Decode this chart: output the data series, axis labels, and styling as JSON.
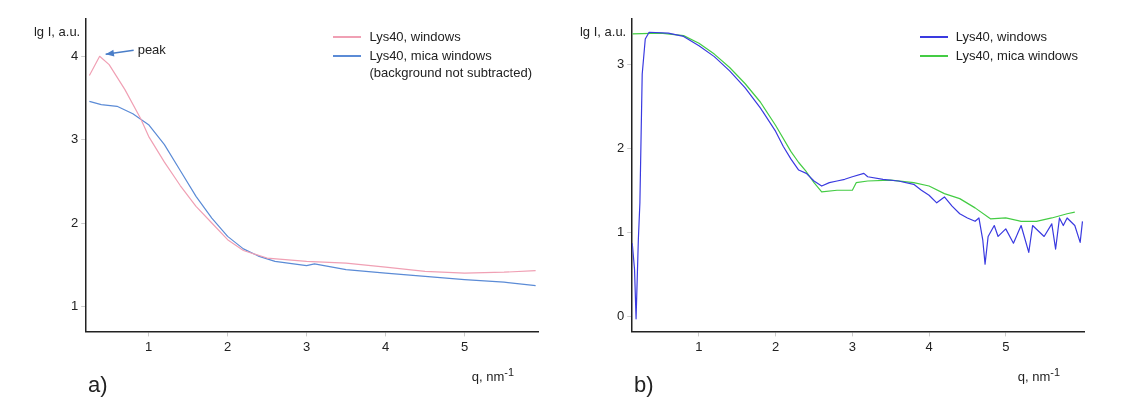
{
  "chart_data": [
    {
      "type": "line",
      "xlabel": "q, nm$^{-1}$",
      "ylabel": "lg I, a.u.",
      "xlim": [
        0.21,
        5.93
      ],
      "ylim": [
        0.7,
        4.45
      ],
      "xticks": [
        1,
        2,
        3,
        4,
        5
      ],
      "yticks": [
        1,
        2,
        3,
        4
      ],
      "legend": "top right",
      "annotations": [
        {
          "text": "peak",
          "x": 0.38,
          "y": 4.0
        },
        "a)"
      ],
      "series": [
        {
          "name": "Lys40, windows",
          "color": "#f0a0b4",
          "x": [
            0.25,
            0.38,
            0.5,
            0.7,
            0.9,
            1.0,
            1.2,
            1.4,
            1.6,
            1.8,
            2.0,
            2.2,
            2.5,
            3.0,
            3.5,
            4.0,
            4.5,
            5.0,
            5.5,
            5.9
          ],
          "values": [
            3.77,
            4.0,
            3.9,
            3.6,
            3.25,
            3.04,
            2.73,
            2.45,
            2.2,
            2.0,
            1.8,
            1.67,
            1.58,
            1.54,
            1.52,
            1.47,
            1.42,
            1.4,
            1.41,
            1.43
          ]
        },
        {
          "name": "Lys40, mica windows\n(background not subtracted)",
          "color": "#5b8bd6",
          "x": [
            0.25,
            0.4,
            0.6,
            0.8,
            1.0,
            1.2,
            1.4,
            1.6,
            1.8,
            2.0,
            2.2,
            2.4,
            2.6,
            3.0,
            3.1,
            3.5,
            4.0,
            4.5,
            5.0,
            5.5,
            5.9
          ],
          "values": [
            3.46,
            3.42,
            3.4,
            3.31,
            3.18,
            2.94,
            2.63,
            2.32,
            2.06,
            1.84,
            1.69,
            1.6,
            1.54,
            1.49,
            1.51,
            1.44,
            1.4,
            1.36,
            1.32,
            1.29,
            1.25
          ]
        }
      ]
    },
    {
      "type": "line",
      "xlabel": "q, nm$^{-1}$",
      "ylabel": "lg I, a.u.",
      "xlim": [
        0.13,
        6.02
      ],
      "ylim": [
        -0.18,
        3.54
      ],
      "xticks": [
        1,
        2,
        3,
        4,
        5
      ],
      "yticks": [
        0,
        1,
        2,
        3
      ],
      "legend": "top right",
      "annotations": [
        "b)"
      ],
      "series": [
        {
          "name": "Lys40, windows",
          "color": "#3a3ae0",
          "x": [
            0.13,
            0.16,
            0.18,
            0.21,
            0.23,
            0.26,
            0.3,
            0.35,
            0.6,
            0.8,
            1.0,
            1.2,
            1.4,
            1.6,
            1.8,
            2.0,
            2.1,
            2.2,
            2.3,
            2.4,
            2.5,
            2.6,
            2.7,
            2.8,
            2.9,
            3.0,
            3.15,
            3.2,
            3.4,
            3.6,
            3.8,
            3.9,
            4.0,
            4.1,
            4.2,
            4.3,
            4.4,
            4.5,
            4.6,
            4.65,
            4.7,
            4.73,
            4.77,
            4.85,
            4.9,
            5.0,
            5.1,
            5.2,
            5.3,
            5.35,
            5.5,
            5.6,
            5.65,
            5.7,
            5.75,
            5.8,
            5.9,
            5.97,
            6.0
          ],
          "values": [
            0.87,
            0.56,
            -0.03,
            0.92,
            1.35,
            2.88,
            3.3,
            3.38,
            3.37,
            3.33,
            3.22,
            3.09,
            2.92,
            2.72,
            2.48,
            2.2,
            2.02,
            1.87,
            1.74,
            1.7,
            1.61,
            1.55,
            1.59,
            1.61,
            1.63,
            1.66,
            1.7,
            1.66,
            1.63,
            1.61,
            1.57,
            1.5,
            1.44,
            1.35,
            1.42,
            1.31,
            1.22,
            1.17,
            1.13,
            1.17,
            0.91,
            0.62,
            0.95,
            1.08,
            0.95,
            1.04,
            0.87,
            1.08,
            0.76,
            1.08,
            0.95,
            1.1,
            0.8,
            1.17,
            1.08,
            1.17,
            1.08,
            0.88,
            1.13
          ]
        },
        {
          "name": "Lys40, mica windows",
          "color": "#44cc44",
          "x": [
            0.13,
            0.5,
            0.8,
            1.0,
            1.2,
            1.4,
            1.6,
            1.8,
            2.0,
            2.2,
            2.3,
            2.4,
            2.5,
            2.6,
            2.8,
            3.0,
            3.05,
            3.2,
            3.5,
            3.8,
            4.0,
            4.2,
            4.4,
            4.6,
            4.8,
            5.0,
            5.2,
            5.4,
            5.6,
            5.8,
            5.9
          ],
          "values": [
            3.36,
            3.37,
            3.34,
            3.25,
            3.12,
            2.96,
            2.77,
            2.55,
            2.27,
            1.96,
            1.83,
            1.72,
            1.59,
            1.48,
            1.5,
            1.5,
            1.59,
            1.61,
            1.62,
            1.59,
            1.55,
            1.46,
            1.4,
            1.29,
            1.16,
            1.17,
            1.13,
            1.13,
            1.17,
            1.22,
            1.24
          ]
        }
      ]
    }
  ]
}
